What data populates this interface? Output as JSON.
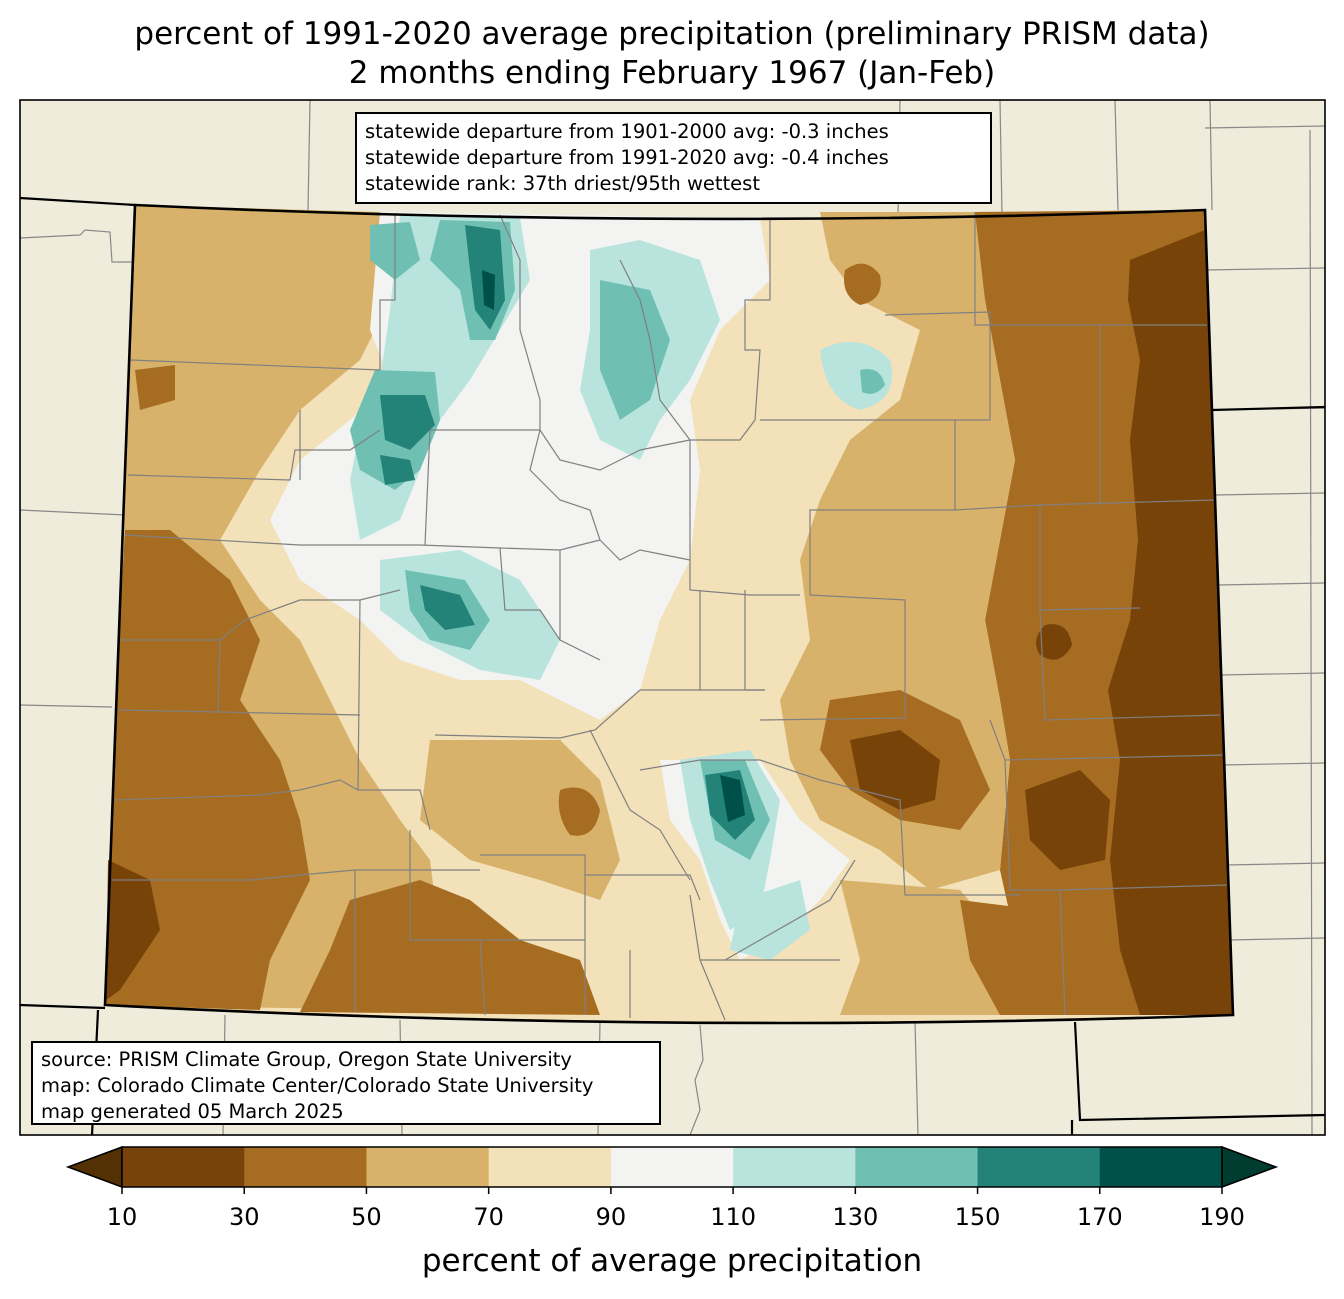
{
  "title_line1": "percent of 1991-2020 average precipitation (preliminary PRISM data)",
  "title_line2": "2 months ending February 1967 (Jan-Feb)",
  "stats": {
    "line1": "statewide departure from 1901-2000 avg: -0.3 inches",
    "line2": "statewide departure from 1991-2020 avg: -0.4 inches",
    "line3": "statewide rank: 37th driest/95th wettest"
  },
  "credits": {
    "line1": "source: PRISM Climate Group, Oregon State University",
    "line2": "map: Colorado Climate Center/Colorado State University",
    "line3": "map generated 05 March 2025"
  },
  "colorbar": {
    "label": "percent of average precipitation",
    "ticks": [
      "10",
      "30",
      "50",
      "70",
      "90",
      "110",
      "130",
      "150",
      "170",
      "190"
    ],
    "colors": [
      "#543005",
      "#774309",
      "#a66c21",
      "#d8b26b",
      "#f2e1b9",
      "#f3f4f2",
      "#b8e4dd",
      "#6fc0b3",
      "#238379",
      "#00504a",
      "#003c30"
    ]
  },
  "map_colors": {
    "background": "#efecdc",
    "state_border": "#000000",
    "county_line": "#808080"
  }
}
